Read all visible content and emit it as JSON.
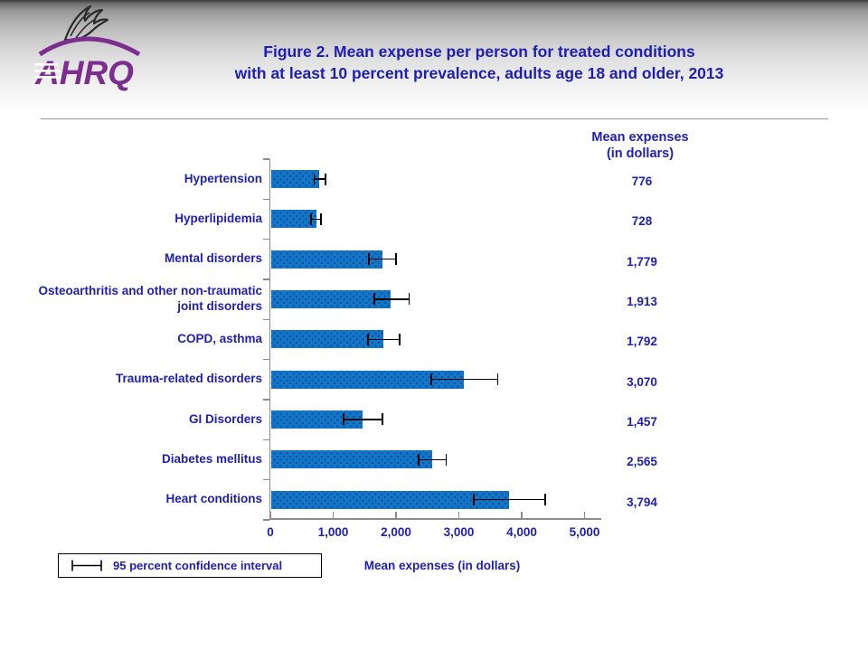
{
  "header": {
    "title_line1": "Figure 2. Mean expense per person for treated conditions",
    "title_line2": "with at least 10 percent prevalence, adults age 18 and older, 2013",
    "logo_text": "AHRQ"
  },
  "table_header": {
    "line1": "Mean expenses",
    "line2": "(in dollars)"
  },
  "legend": {
    "label": "95 percent confidence interval"
  },
  "colors": {
    "text_blue": "#1E1EB4",
    "bar_blue": "#1476C8",
    "bar_dot": "#08468C",
    "axis_gray": "#8c8c8c",
    "error_black": "#000000",
    "logo_purple": "#7B2E8D"
  },
  "chart_data": {
    "type": "bar",
    "orientation": "horizontal",
    "title": "Figure 2. Mean expense per person for treated conditions with at least 10 percent prevalence, adults age 18 and older, 2013",
    "categories": [
      "Hypertension",
      "Hyperlipidemia",
      "Mental disorders",
      "Osteoarthritis and other non-traumatic joint disorders",
      "COPD, asthma",
      "Trauma-related disorders",
      "GI Disorders",
      "Diabetes mellitus",
      "Heart conditions"
    ],
    "values": [
      776,
      728,
      1779,
      1913,
      1792,
      3070,
      1457,
      2565,
      3794
    ],
    "value_labels": [
      "776",
      "728",
      "1,779",
      "1,913",
      "1,792",
      "3,070",
      "1,457",
      "2,565",
      "3,794"
    ],
    "error_bars": true,
    "ci_low": [
      700,
      645,
      1570,
      1655,
      1555,
      2560,
      1165,
      2360,
      3240
    ],
    "ci_high": [
      875,
      810,
      2000,
      2210,
      2060,
      3620,
      1785,
      2800,
      4370
    ],
    "x_tick_values": [
      0,
      1000,
      2000,
      3000,
      4000,
      5000
    ],
    "x_tick_labels": [
      "0",
      "1,000",
      "2,000",
      "3,000",
      "4,000",
      "5,000"
    ],
    "xlim": [
      0,
      5250
    ],
    "xlabel": "Mean expenses (in dollars)",
    "legend_label": "95 percent confidence interval",
    "grid": false,
    "legend_position": "bottom-left"
  }
}
